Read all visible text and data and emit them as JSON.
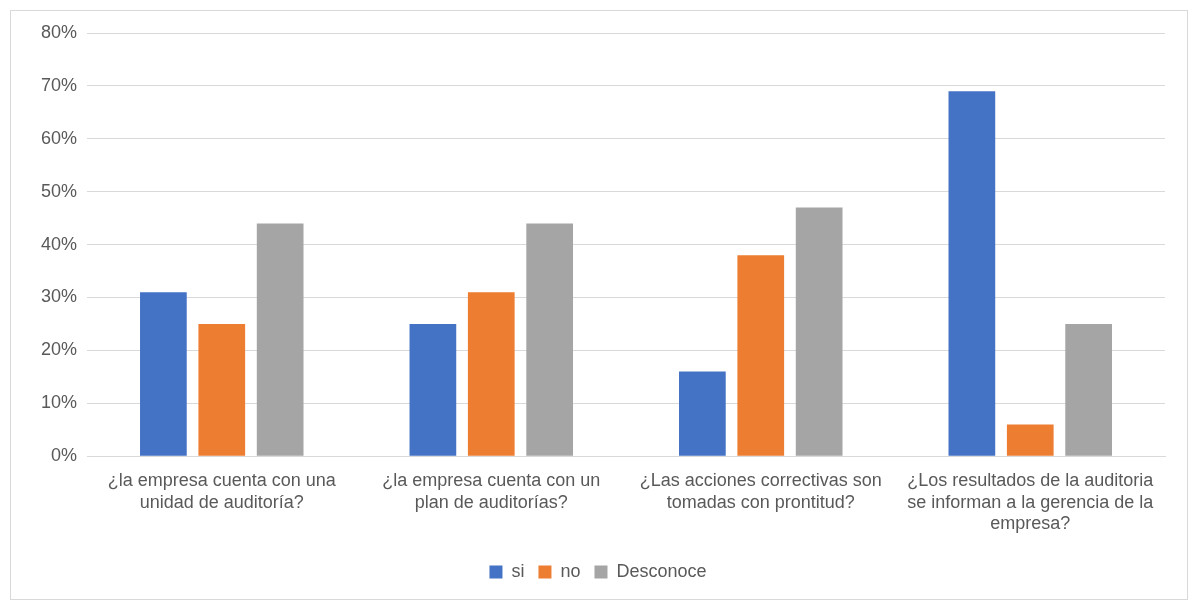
{
  "chart_data": {
    "type": "bar",
    "categories": [
      "¿la empresa cuenta con una unidad de auditoría?",
      "¿la empresa cuenta con un plan de auditorías?",
      "¿Las acciones correctivas son tomadas con prontitud?",
      "¿Los resultados de la auditoria se informan a la gerencia de la empresa?"
    ],
    "series": [
      {
        "name": "si",
        "color": "#4472c4",
        "values": [
          31,
          25,
          16,
          69
        ]
      },
      {
        "name": "no",
        "color": "#ed7d31",
        "values": [
          25,
          31,
          38,
          6
        ]
      },
      {
        "name": "Desconoce",
        "color": "#a5a5a5",
        "values": [
          44,
          44,
          47,
          25
        ]
      }
    ],
    "ylim": [
      0,
      80
    ],
    "yticks": [
      {
        "value": 0,
        "label": "0%"
      },
      {
        "value": 10,
        "label": "10%"
      },
      {
        "value": 20,
        "label": "20%"
      },
      {
        "value": 30,
        "label": "30%"
      },
      {
        "value": 40,
        "label": "40%"
      },
      {
        "value": 50,
        "label": "50%"
      },
      {
        "value": 60,
        "label": "60%"
      },
      {
        "value": 70,
        "label": "70%"
      },
      {
        "value": 80,
        "label": "80%"
      }
    ],
    "grid": "y",
    "legend": "bottom"
  }
}
